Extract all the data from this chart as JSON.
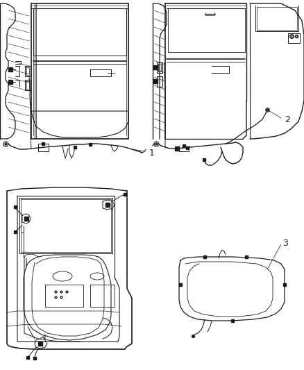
{
  "background_color": "#ffffff",
  "line_color": "#1a1a1a",
  "label_color": "#000000",
  "figure_width": 4.38,
  "figure_height": 5.33,
  "dpi": 100,
  "labels": {
    "1": [
      0.345,
      0.732
    ],
    "2": [
      0.88,
      0.682
    ],
    "3": [
      0.88,
      0.395
    ]
  }
}
